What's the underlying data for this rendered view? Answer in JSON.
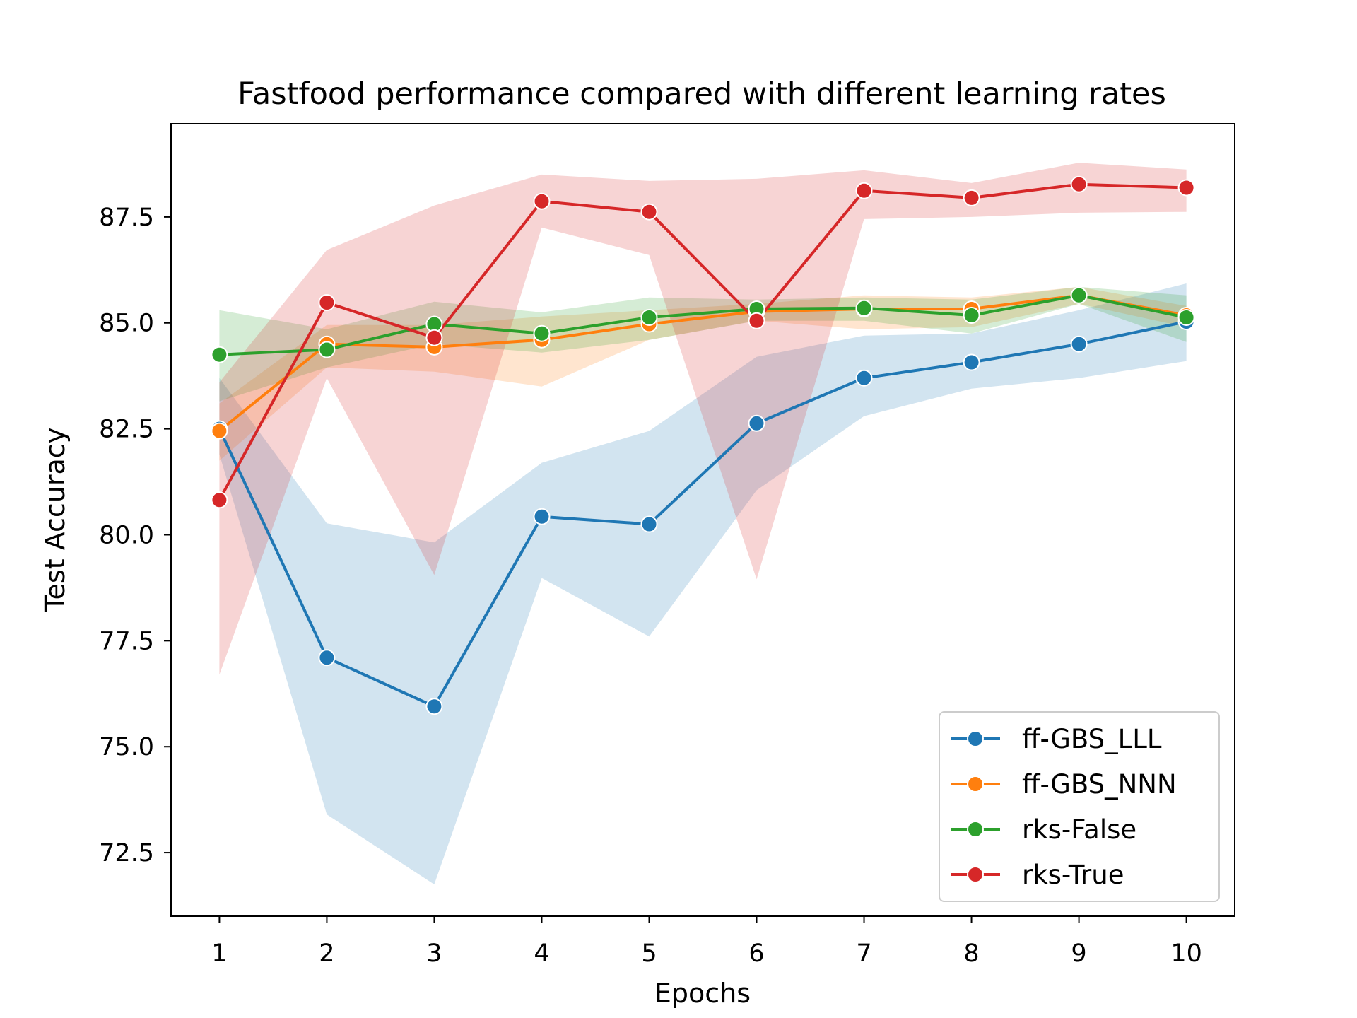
{
  "chart_data": {
    "type": "line",
    "title": "Fastfood performance compared with different learning rates",
    "xlabel": "Epochs",
    "ylabel": "Test Accuracy",
    "xlim": [
      0.55,
      10.45
    ],
    "ylim": [
      71.0,
      89.7
    ],
    "x_ticks": [
      1,
      2,
      3,
      4,
      5,
      6,
      7,
      8,
      9,
      10
    ],
    "x_tick_labels": [
      "1",
      "2",
      "3",
      "4",
      "5",
      "6",
      "7",
      "8",
      "9",
      "10"
    ],
    "y_ticks": [
      72.5,
      75.0,
      77.5,
      80.0,
      82.5,
      85.0,
      87.5
    ],
    "y_tick_labels": [
      "72.5",
      "75.0",
      "77.5",
      "80.0",
      "82.5",
      "85.0",
      "87.5"
    ],
    "grid": false,
    "legend_position": "lower right",
    "x": [
      1,
      2,
      3,
      4,
      5,
      6,
      7,
      8,
      9,
      10
    ],
    "series": [
      {
        "name": "ff-GBS_LLL",
        "color": "#1f77b4",
        "marker": "circle",
        "values": [
          82.5,
          77.1,
          75.95,
          80.43,
          80.25,
          82.63,
          83.7,
          84.07,
          84.5,
          85.03
        ],
        "band_lower": [
          81.9,
          73.4,
          71.75,
          78.98,
          77.6,
          81.05,
          82.8,
          83.45,
          83.7,
          84.1
        ],
        "band_upper": [
          83.7,
          80.27,
          79.82,
          81.7,
          82.45,
          84.2,
          84.7,
          84.75,
          85.3,
          85.93
        ]
      },
      {
        "name": "ff-GBS_NNN",
        "color": "#ff7f0e",
        "marker": "circle",
        "values": [
          82.45,
          84.5,
          84.43,
          84.6,
          84.97,
          85.27,
          85.33,
          85.33,
          85.65,
          85.18
        ],
        "band_lower": [
          81.75,
          83.95,
          83.85,
          83.5,
          84.6,
          85.05,
          84.85,
          84.9,
          85.45,
          84.9
        ],
        "band_upper": [
          83.1,
          84.95,
          84.95,
          85.15,
          85.3,
          85.45,
          85.65,
          85.6,
          85.85,
          85.4
        ]
      },
      {
        "name": "rks-False",
        "color": "#2ca02c",
        "marker": "circle",
        "values": [
          84.25,
          84.37,
          84.97,
          84.75,
          85.13,
          85.33,
          85.35,
          85.18,
          85.65,
          85.13
        ],
        "band_lower": [
          83.15,
          83.95,
          84.5,
          84.3,
          84.6,
          85.05,
          85.05,
          84.75,
          85.45,
          84.55
        ],
        "band_upper": [
          85.3,
          84.85,
          85.5,
          85.25,
          85.6,
          85.55,
          85.6,
          85.55,
          85.85,
          85.65
        ]
      },
      {
        "name": "rks-True",
        "color": "#d62728",
        "marker": "circle",
        "values": [
          80.82,
          85.48,
          84.65,
          87.87,
          87.62,
          85.05,
          88.12,
          87.95,
          88.27,
          88.19
        ],
        "band_lower": [
          76.7,
          83.7,
          79.05,
          87.25,
          86.6,
          78.95,
          87.45,
          87.5,
          87.6,
          87.62
        ],
        "band_upper": [
          83.6,
          86.72,
          87.77,
          88.5,
          88.35,
          88.4,
          88.6,
          88.3,
          88.78,
          88.62
        ]
      }
    ]
  }
}
